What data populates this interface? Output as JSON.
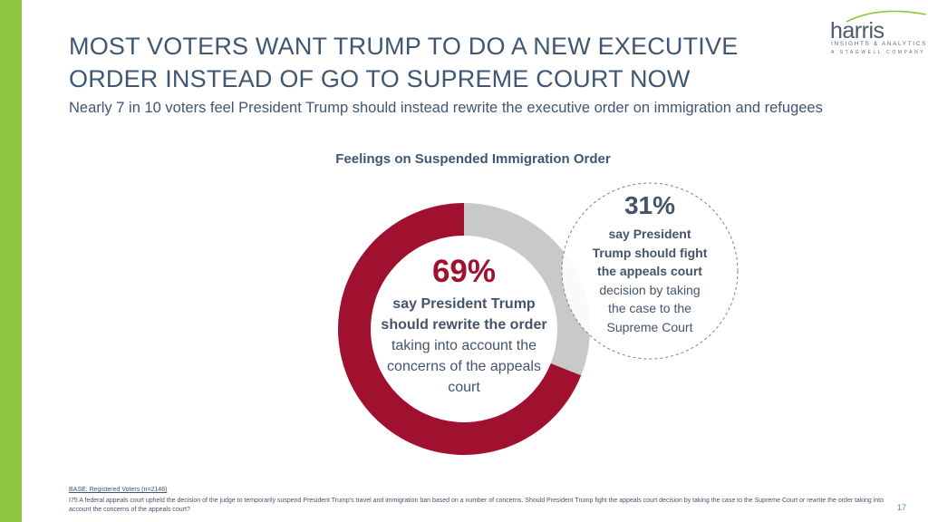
{
  "slide": {
    "title_line1": "MOST VOTERS WANT TRUMP TO DO A NEW EXECUTIVE",
    "title_line2": "ORDER INSTEAD OF GO TO SUPREME COURT NOW",
    "subtitle": "Nearly 7 in 10 voters feel President Trump should instead rewrite the executive order on immigration and refugees",
    "page_number": "17"
  },
  "logo": {
    "word": "harris",
    "line1": "INSIGHTS & ANALYTICS",
    "line2": "A STAGWELL COMPANY",
    "arc_color": "#8dc63f"
  },
  "colors": {
    "accent_bar": "#8dc63f",
    "rewrite_segment": "#a0112f",
    "fight_segment": "#c9c9c9",
    "title_text": "#3f5773"
  },
  "chart_data": {
    "type": "pie",
    "title": "Feelings on Suspended Immigration Order",
    "donut": true,
    "slices": [
      {
        "label": "say President Trump should rewrite the order taking into account the concerns of the appeals court",
        "value": 69,
        "color": "#a0112f"
      },
      {
        "label": "say President Trump should fight the appeals court decision by taking the case to the Supreme Court",
        "value": 31,
        "color": "#c9c9c9"
      }
    ],
    "rewrite": {
      "pct": "69%",
      "bold": "say President Trump should rewrite the order",
      "rest": " taking into account the concerns of the appeals court"
    },
    "fight": {
      "pct": "31%",
      "bold": "say President Trump should fight the appeals court",
      "rest": " decision by taking the case to the Supreme Court"
    }
  },
  "footnote": {
    "base": "BASE: Registered Voters (n=2148)",
    "question": "I75 A federal appeals court upheld the decision of the judge to temporarily suspend President Trump's travel and immigration ban based on a number of concerns. Should President Trump fight the appeals court decision by taking the case to the Supreme Court or rewrite the order taking into account the concerns of the appeals court?"
  }
}
